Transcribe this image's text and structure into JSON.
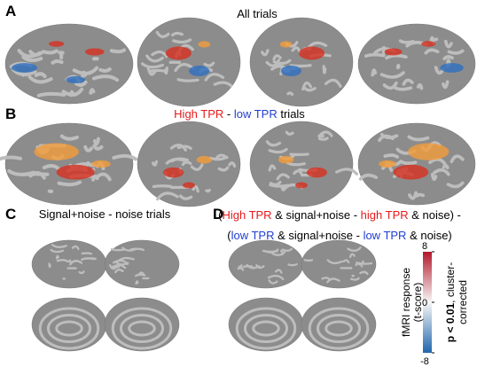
{
  "panels": [
    {
      "label": "A",
      "title": [
        [
          {
            "text": "All trials"
          }
        ]
      ]
    },
    {
      "label": "B",
      "title": [
        [
          {
            "text": "High TPR",
            "color": "#e41a1c"
          },
          {
            "text": " - "
          },
          {
            "text": "low TPR",
            "color": "#1f3fd1"
          },
          {
            "text": " trials"
          }
        ]
      ]
    },
    {
      "label": "C",
      "title": [
        [
          {
            "text": "Signal+noise - noise trials"
          }
        ]
      ]
    },
    {
      "label": "D",
      "title": [
        [
          {
            "text": "("
          },
          {
            "text": "High TPR",
            "color": "#e41a1c"
          },
          {
            "text": " & signal+noise - "
          },
          {
            "text": "high TPR",
            "color": "#e41a1c"
          },
          {
            "text": " & noise) -"
          }
        ],
        [
          {
            "text": "("
          },
          {
            "text": "low TPR",
            "color": "#1f3fd1"
          },
          {
            "text": " & signal+noise - "
          },
          {
            "text": "low TPR",
            "color": "#1f3fd1"
          },
          {
            "text": " & noise)"
          }
        ]
      ]
    }
  ],
  "colorbar": {
    "lim": [
      -8,
      8
    ],
    "ticks": [
      8,
      0,
      -8
    ],
    "colors": [
      "#2166ac",
      "#f7f7f7",
      "#b2182b"
    ],
    "label": [
      "fMRI response",
      "(t-score)"
    ],
    "significance": [
      [
        {
          "text": "p < 0.01",
          "bold": true
        },
        {
          "text": ", cluster-"
        }
      ],
      [
        {
          "text": "corrected"
        }
      ]
    ]
  }
}
